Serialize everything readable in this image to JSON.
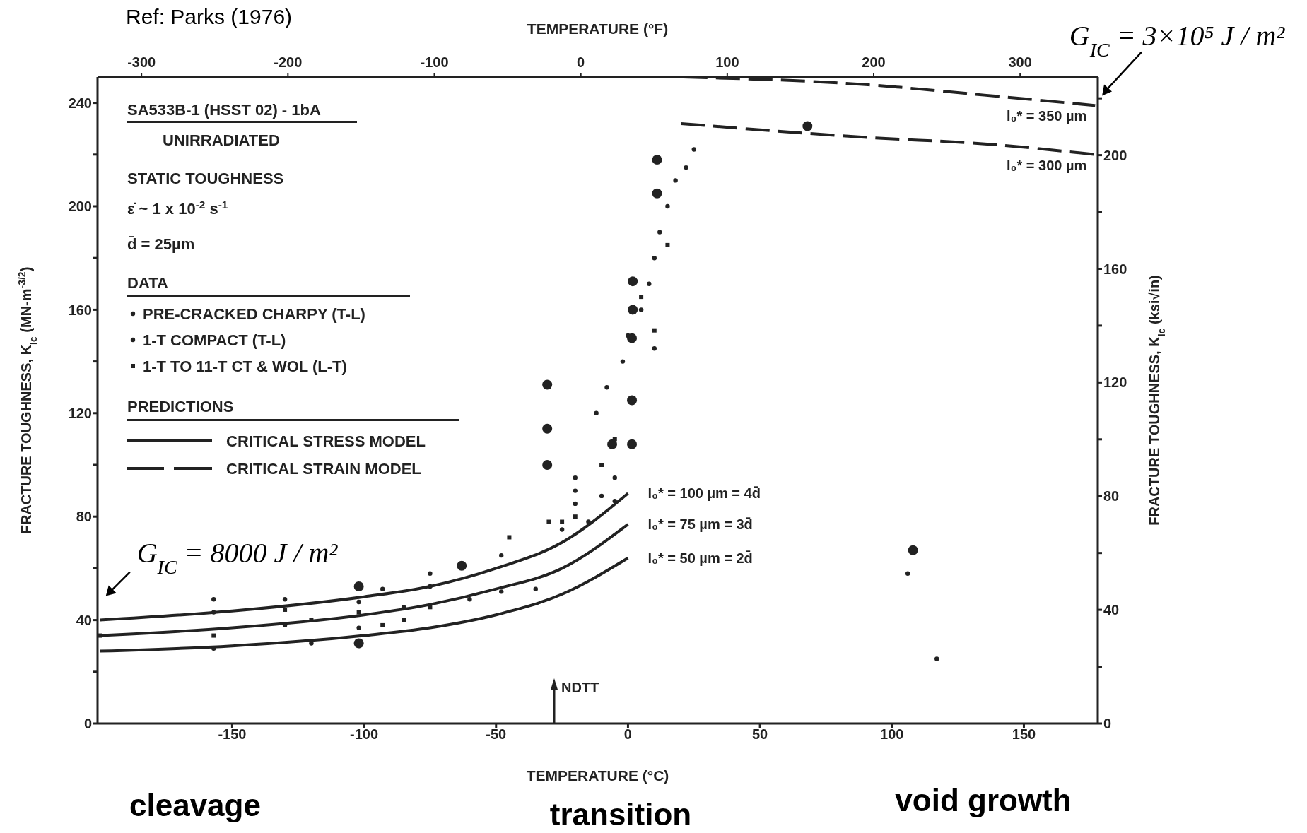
{
  "chart_data": {
    "type": "scatter",
    "title": "SA533B-1 (HSST 02) - 1bA",
    "subtitle": "UNIRRADIATED",
    "legend_title": "DATA",
    "legend": "top left",
    "xlabel": "TEMPERATURE (°C)",
    "x2label": "TEMPERATURE (°F)",
    "ylabel": "FRACTURE TOUGHNESS, K$_{Ic}$ (MN-m$^{-3/2}$)",
    "y2label": "FRACTURE TOUGHNESS, K$_{Ic}$ (ksi√in)",
    "xlim": [
      -201,
      178
    ],
    "xticks": [
      -150,
      -100,
      -50,
      0,
      50,
      100,
      150
    ],
    "x2lim": [
      -330,
      353
    ],
    "x2ticks": [
      -300,
      -200,
      -100,
      0,
      100,
      200,
      300
    ],
    "ylim": [
      0,
      250
    ],
    "yticks": [
      0,
      {
        "value": 20,
        "label": null
      },
      40,
      {
        "value": 60,
        "label": null
      },
      80,
      {
        "value": 100,
        "label": null
      },
      120,
      {
        "value": 140,
        "label": null
      },
      160,
      {
        "value": 180,
        "label": null
      },
      200,
      {
        "value": 220,
        "label": null
      },
      240
    ],
    "y2lim": [
      0,
      227.5
    ],
    "y2ticks": [
      0,
      {
        "value": 20,
        "label": null
      },
      40,
      {
        "value": 60,
        "label": null
      },
      80,
      {
        "value": 100,
        "label": null
      },
      120,
      {
        "value": 140,
        "label": null
      },
      160,
      {
        "value": 180,
        "label": null
      },
      200,
      {
        "value": 220,
        "label": null
      }
    ],
    "grid": false,
    "annotations": [
      "STATIC TOUGHNESS",
      "ε̇ ~ 1 x 10$^{-2}$ s$^{-1}$",
      "d̄ = 25µm",
      "PREDICTIONS",
      "CRITICAL STRESS MODEL",
      "CRITICAL STRAIN MODEL",
      "Ref: Parks (1976)",
      {
        "text": "G$_{IC}$ = 8000 J / m²",
        "x": -200,
        "y": 40
      },
      {
        "text": "G$_{IC}$ = 3×10⁵ J / m²",
        "x": 178,
        "y": 240
      },
      "NDTT",
      "cleavage",
      "transition",
      "void growth"
    ],
    "series": [
      {
        "name": "PRE-CRACKED CHARPY (T-L)",
        "marker": "circle",
        "color": "#222222",
        "x": [
          -157,
          -157,
          -157,
          -130,
          -130,
          -120,
          -102,
          -102,
          -93,
          -85,
          -75,
          -75,
          -60,
          -48,
          -48,
          -35,
          -20,
          -20,
          -20,
          -15,
          -10,
          -5,
          -5,
          -12,
          -8,
          -2,
          0,
          5,
          8,
          10,
          12,
          15,
          18,
          22,
          25,
          10,
          -25,
          106,
          117
        ],
        "values": [
          48,
          43,
          29,
          48,
          38,
          31,
          47,
          37,
          52,
          45,
          58,
          53,
          48,
          65,
          51,
          52,
          95,
          90,
          85,
          78,
          88,
          86,
          95,
          120,
          130,
          140,
          150,
          160,
          170,
          180,
          190,
          200,
          210,
          215,
          222,
          145,
          75,
          58,
          25
        ]
      },
      {
        "name": "1-T COMPACT (T-L)",
        "marker": "circle",
        "color": "#222222",
        "x": [
          -30.6,
          -30.6,
          -30.6,
          1.8,
          1.8,
          1.5,
          1.5,
          1.5,
          -6,
          11,
          11,
          68,
          108,
          -63,
          -102,
          -102
        ],
        "values": [
          131,
          114,
          100,
          171,
          160,
          149,
          125,
          108,
          108,
          218,
          205,
          231,
          67,
          61,
          53,
          31
        ]
      },
      {
        "name": "1-T TO 11-T CT & WOL (L-T)",
        "marker": "square",
        "color": "#222222",
        "x": [
          -200,
          -157,
          -130,
          -120,
          -102,
          -93,
          -85,
          -75,
          -45,
          -25,
          -20,
          -10,
          -5,
          5,
          10,
          15,
          -30
        ],
        "values": [
          34,
          34,
          44,
          40,
          43,
          38,
          40,
          45,
          72,
          78,
          80,
          100,
          110,
          165,
          152,
          185,
          78
        ]
      },
      {
        "name": "l₀* = 100 µm = 4d̄",
        "type": "line",
        "marker": "none",
        "line_style": "solid",
        "color": "#222222",
        "x": [
          -200,
          -150,
          -100,
          -75,
          -50,
          -25,
          0
        ],
        "values": [
          40,
          43.5,
          49,
          53,
          60,
          70,
          89
        ]
      },
      {
        "name": "l₀* = 75 µm = 3d̄",
        "type": "line",
        "marker": "none",
        "line_style": "solid",
        "color": "#222222",
        "x": [
          -200,
          -150,
          -100,
          -75,
          -50,
          -25,
          0
        ],
        "values": [
          34,
          37,
          42,
          46,
          52,
          60,
          77
        ]
      },
      {
        "name": "l₀* = 50 µm = 2d̄",
        "type": "line",
        "marker": "none",
        "line_style": "solid",
        "color": "#222222",
        "x": [
          -200,
          -150,
          -100,
          -75,
          -50,
          -25,
          0
        ],
        "values": [
          28,
          30,
          34,
          37,
          42,
          50,
          64
        ]
      },
      {
        "name": "l₀* = 350 µm",
        "type": "line",
        "marker": "none",
        "line_style": "dashed",
        "color": "#222222",
        "x": [
          21,
          91,
          135,
          177
        ],
        "values": [
          250,
          247,
          243,
          239
        ]
      },
      {
        "name": "l₀* = 300 µm",
        "type": "line",
        "marker": "none",
        "line_style": "dashed",
        "color": "#222222",
        "x": [
          20,
          91,
          137,
          177
        ],
        "values": [
          232,
          226.6,
          224,
          220
        ]
      }
    ]
  }
}
